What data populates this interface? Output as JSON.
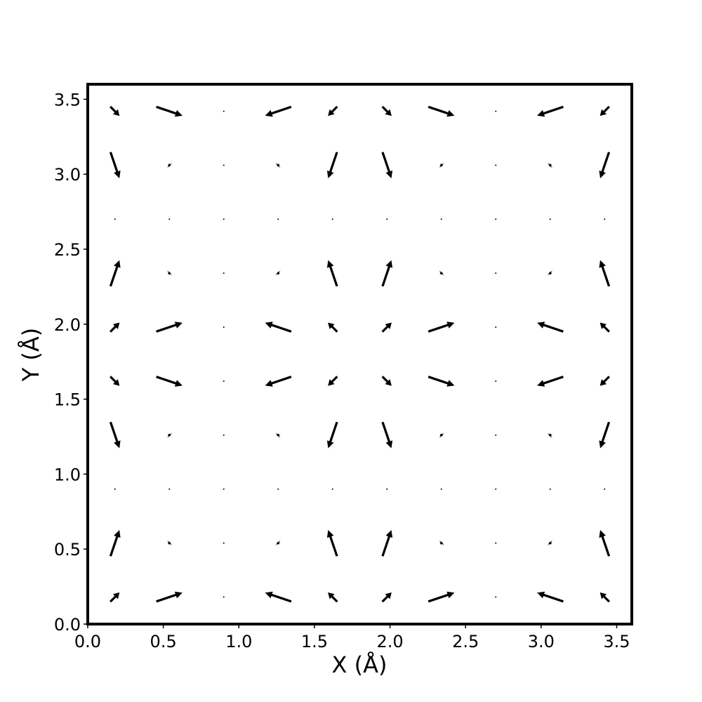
{
  "chart_data": {
    "type": "quiver",
    "xlabel": "X (Å)",
    "ylabel": "Y (Å)",
    "color": "#000000",
    "x": [
      0.18,
      0.54,
      0.9,
      1.26,
      1.62,
      1.98,
      2.34,
      2.7,
      3.06,
      3.42
    ],
    "y": [
      0.18,
      0.54,
      0.9,
      1.26,
      1.62,
      1.98,
      2.34,
      2.7,
      3.06,
      3.42
    ],
    "u": [
      [
        0.22,
        0.62,
        0,
        -0.62,
        -0.22,
        0.22,
        0.62,
        0,
        -0.62,
        -0.22
      ],
      [
        0.21,
        0.04,
        0,
        -0.04,
        -0.21,
        0.21,
        0.04,
        0,
        -0.04,
        -0.21
      ],
      [
        0,
        0,
        0,
        0,
        0,
        0,
        0,
        0,
        0,
        0
      ],
      [
        0.21,
        0.04,
        0,
        -0.04,
        -0.21,
        0.21,
        0.04,
        0,
        -0.04,
        -0.21
      ],
      [
        0.22,
        0.62,
        0,
        -0.62,
        -0.22,
        0.22,
        0.62,
        0,
        -0.62,
        -0.22
      ],
      [
        0.22,
        0.62,
        0,
        -0.62,
        -0.22,
        0.22,
        0.62,
        0,
        -0.62,
        -0.22
      ],
      [
        0.21,
        0.04,
        0,
        -0.04,
        -0.21,
        0.21,
        0.04,
        0,
        -0.04,
        -0.21
      ],
      [
        0,
        0,
        0,
        0,
        0,
        0,
        0,
        0,
        0,
        0
      ],
      [
        0.21,
        0.04,
        0,
        -0.04,
        -0.21,
        0.21,
        0.04,
        0,
        -0.04,
        -0.21
      ],
      [
        0.22,
        0.62,
        0,
        -0.62,
        -0.22,
        0.22,
        0.62,
        0,
        -0.62,
        -0.22
      ]
    ],
    "v": [
      [
        0.22,
        0.21,
        0,
        0.21,
        0.22,
        0.22,
        0.21,
        0,
        0.21,
        0.22
      ],
      [
        0.62,
        0.04,
        0,
        0.04,
        0.62,
        0.62,
        0.04,
        0,
        0.04,
        0.62
      ],
      [
        0,
        0,
        0,
        0,
        0,
        0,
        0,
        0,
        0,
        0
      ],
      [
        -0.62,
        -0.04,
        0,
        -0.04,
        -0.62,
        -0.62,
        -0.04,
        0,
        -0.04,
        -0.62
      ],
      [
        -0.22,
        -0.21,
        0,
        -0.21,
        -0.22,
        -0.22,
        -0.21,
        0,
        -0.21,
        -0.22
      ],
      [
        0.22,
        0.21,
        0,
        0.21,
        0.22,
        0.22,
        0.21,
        0,
        0.21,
        0.22
      ],
      [
        0.62,
        0.04,
        0,
        0.04,
        0.62,
        0.62,
        0.04,
        0,
        0.04,
        0.62
      ],
      [
        0,
        0,
        0,
        0,
        0,
        0,
        0,
        0,
        0,
        0
      ],
      [
        -0.62,
        -0.04,
        0,
        -0.04,
        -0.62,
        -0.62,
        -0.04,
        0,
        -0.04,
        -0.62
      ],
      [
        -0.22,
        -0.21,
        0,
        -0.21,
        -0.22,
        -0.22,
        -0.21,
        0,
        -0.21,
        -0.22
      ]
    ],
    "xlim": [
      0,
      3.6
    ],
    "ylim": [
      0,
      3.6
    ],
    "xticks": [
      {
        "value": 0,
        "label": "0.0"
      },
      0.5,
      {
        "value": 1,
        "label": "1.0"
      },
      1.5,
      {
        "value": 2,
        "label": "2.0"
      },
      2.5,
      {
        "value": 3,
        "label": "3.0"
      },
      3.5
    ],
    "yticks": [
      {
        "value": 0,
        "label": "0.0"
      },
      0.5,
      {
        "value": 1,
        "label": "1.0"
      },
      1.5,
      {
        "value": 2,
        "label": "2.0"
      },
      2.5,
      {
        "value": 3,
        "label": "3.0"
      },
      3.5
    ]
  }
}
